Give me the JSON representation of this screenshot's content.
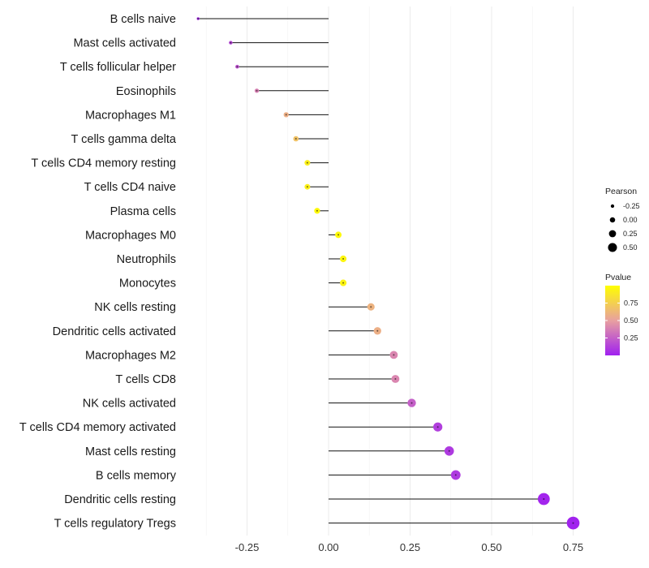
{
  "chart_data": {
    "type": "lollipop",
    "title": "",
    "xlabel": "",
    "ylabel": "",
    "xlim": [
      -0.42,
      0.78
    ],
    "x_ticks": [
      -0.25,
      0.0,
      0.25,
      0.5,
      0.75
    ],
    "x_tick_labels": [
      "-0.25",
      "0.00",
      "0.25",
      "0.50",
      "0.75"
    ],
    "categories": [
      "B cells naive",
      "Mast cells activated",
      "T cells follicular helper",
      "Eosinophils",
      "Macrophages M1",
      "T cells gamma delta",
      "T cells CD4 memory resting",
      "T cells CD4 naive",
      "Plasma cells",
      "Macrophages M0",
      "Neutrophils",
      "Monocytes",
      "NK cells resting",
      "Dendritic cells activated",
      "Macrophages M2",
      "T cells CD8",
      "NK cells activated",
      "T cells CD4 memory activated",
      "Mast cells resting",
      "B cells memory",
      "Dendritic cells resting",
      "T cells regulatory  Tregs"
    ],
    "pearson": [
      -0.4,
      -0.3,
      -0.28,
      -0.22,
      -0.13,
      -0.1,
      -0.065,
      -0.065,
      -0.035,
      0.03,
      0.045,
      0.045,
      0.13,
      0.15,
      0.2,
      0.205,
      0.255,
      0.335,
      0.37,
      0.39,
      0.66,
      0.75
    ],
    "pvalue": [
      0.05,
      0.15,
      0.2,
      0.38,
      0.58,
      0.68,
      0.92,
      0.92,
      0.97,
      0.97,
      0.95,
      0.94,
      0.6,
      0.58,
      0.4,
      0.4,
      0.25,
      0.12,
      0.1,
      0.1,
      0.02,
      0.01
    ],
    "legend": {
      "size_title": "Pearson",
      "size_values": [
        -0.25,
        0.0,
        0.25,
        0.5
      ],
      "size_labels": [
        "-0.25",
        "0.00",
        "0.25",
        "0.50"
      ],
      "color_title": "Pvalue",
      "color_ticks": [
        0.25,
        0.5,
        0.75
      ],
      "color_labels": [
        "0.25",
        "0.50",
        "0.75"
      ],
      "color_range": [
        0.0,
        1.0
      ],
      "color_low": "#A020F0",
      "color_mid": "#E8A0A0",
      "color_high": "#FFFF00"
    },
    "grid": "vertical",
    "legend_position": "right"
  }
}
